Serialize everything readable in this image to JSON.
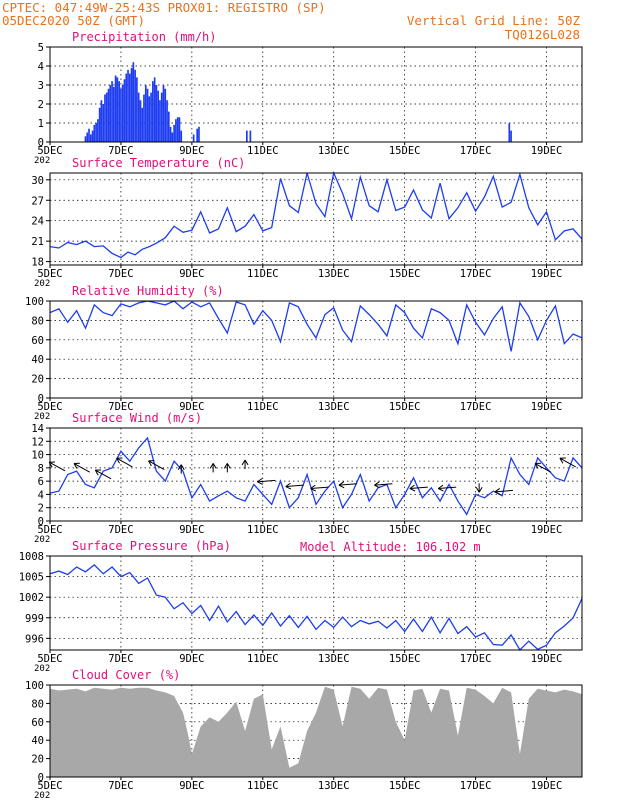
{
  "header": {
    "line1": "CPTEC:   047:49W-25:43S   PROX01: REGISTRO (SP)",
    "line2_left": "05DEC2020 50Z (GMT)",
    "line2_right": "Vertical Grid Line: 50Z",
    "line3_right": "TQ0126L028"
  },
  "x_axis": {
    "tick_labels": [
      "5DEC",
      "7DEC",
      "9DEC",
      "11DEC",
      "13DEC",
      "15DEC",
      "17DEC",
      "19DEC"
    ],
    "tick_days": [
      0,
      2,
      4,
      6,
      8,
      10,
      12,
      14
    ],
    "year_fragment": "202",
    "range_days": [
      0,
      15
    ]
  },
  "model_altitude": "Model Altitude: 106.102 m",
  "colors": {
    "header": "#e8731c",
    "title": "#e0107a",
    "line": "#1f3df0",
    "bar": "#1f3df0",
    "cloud": "#a8a8a8"
  },
  "chart_data": [
    {
      "type": "bar",
      "title": "Precipitation (mm/h)",
      "ylim": [
        0,
        5
      ],
      "yticks": [
        0,
        1,
        2,
        3,
        4,
        5
      ],
      "x_unit": "days since 05DEC",
      "x": [
        1.0,
        1.05,
        1.1,
        1.15,
        1.2,
        1.25,
        1.3,
        1.35,
        1.4,
        1.45,
        1.5,
        1.55,
        1.6,
        1.65,
        1.7,
        1.75,
        1.8,
        1.85,
        1.9,
        1.95,
        2.0,
        2.05,
        2.1,
        2.15,
        2.2,
        2.25,
        2.3,
        2.35,
        2.4,
        2.45,
        2.5,
        2.55,
        2.6,
        2.65,
        2.7,
        2.75,
        2.8,
        2.85,
        2.9,
        2.95,
        3.0,
        3.05,
        3.1,
        3.15,
        3.2,
        3.25,
        3.3,
        3.35,
        3.4,
        3.45,
        3.5,
        3.55,
        3.6,
        3.65,
        3.7,
        4.05,
        4.15,
        4.2,
        5.55,
        5.65,
        12.95,
        13.0
      ],
      "values": [
        0.3,
        0.5,
        0.7,
        0.4,
        0.6,
        0.9,
        1.0,
        1.2,
        1.8,
        2.2,
        2.0,
        2.5,
        2.6,
        2.8,
        3.0,
        3.2,
        2.9,
        3.5,
        3.4,
        3.2,
        2.8,
        3.0,
        3.3,
        3.6,
        3.8,
        3.6,
        3.9,
        4.2,
        3.8,
        3.4,
        2.6,
        2.2,
        1.8,
        2.5,
        3.0,
        2.8,
        2.4,
        2.6,
        3.2,
        3.4,
        3.0,
        2.7,
        2.2,
        2.6,
        3.0,
        2.8,
        2.2,
        1.6,
        0.8,
        0.5,
        0.9,
        1.2,
        1.3,
        1.3,
        0.6,
        0.4,
        0.7,
        0.8,
        0.6,
        0.6,
        1.0,
        0.6
      ]
    },
    {
      "type": "line",
      "title": "Surface Temperature (nC)",
      "ylim": [
        17.5,
        31
      ],
      "yticks": [
        18,
        21,
        24,
        27,
        30
      ],
      "x_unit": "days since 05DEC",
      "x": [
        0,
        0.25,
        0.5,
        0.75,
        1,
        1.25,
        1.5,
        1.75,
        2,
        2.2,
        2.4,
        2.6,
        2.8,
        3,
        3.25,
        3.5,
        3.75,
        4,
        4.25,
        4.5,
        4.75,
        5,
        5.25,
        5.5,
        5.75,
        6,
        6.25,
        6.5,
        6.75,
        7,
        7.25,
        7.5,
        7.75,
        8,
        8.25,
        8.5,
        8.75,
        9,
        9.25,
        9.5,
        9.75,
        10,
        10.25,
        10.5,
        10.75,
        11,
        11.25,
        11.5,
        11.75,
        12,
        12.25,
        12.5,
        12.75,
        13,
        13.25,
        13.5,
        13.75,
        14,
        14.25,
        14.5,
        14.75,
        15
      ],
      "values": [
        20.2,
        20.0,
        20.8,
        20.5,
        21.0,
        20.2,
        20.3,
        19.2,
        18.6,
        19.4,
        19.0,
        19.8,
        20.2,
        20.7,
        21.5,
        23.2,
        22.3,
        22.6,
        25.3,
        22.2,
        22.8,
        25.9,
        22.4,
        23.2,
        24.9,
        22.5,
        23.0,
        30.2,
        26.2,
        25.2,
        31.0,
        26.5,
        24.6,
        31.0,
        28.0,
        24.3,
        30.4,
        26.2,
        25.3,
        30.0,
        25.5,
        26.0,
        28.5,
        25.6,
        24.4,
        29.5,
        24.3,
        25.9,
        28.1,
        25.4,
        27.5,
        30.5,
        26.0,
        26.7,
        30.8,
        25.9,
        23.4,
        25.3,
        21.2,
        22.5,
        22.8,
        21.3
      ]
    },
    {
      "type": "line",
      "title": "Relative Humidity (%)",
      "ylim": [
        0,
        100
      ],
      "yticks": [
        0,
        20,
        40,
        60,
        80,
        100
      ],
      "x_unit": "days since 05DEC",
      "x": [
        0,
        0.25,
        0.5,
        0.75,
        1,
        1.25,
        1.5,
        1.75,
        2,
        2.25,
        2.5,
        2.75,
        3,
        3.25,
        3.5,
        3.75,
        4,
        4.25,
        4.5,
        4.75,
        5,
        5.25,
        5.5,
        5.75,
        6,
        6.25,
        6.5,
        6.75,
        7,
        7.25,
        7.5,
        7.75,
        8,
        8.25,
        8.5,
        8.75,
        9,
        9.25,
        9.5,
        9.75,
        10,
        10.25,
        10.5,
        10.75,
        11,
        11.25,
        11.5,
        11.75,
        12,
        12.25,
        12.5,
        12.75,
        13,
        13.25,
        13.5,
        13.75,
        14,
        14.25,
        14.5,
        14.75,
        15
      ],
      "values": [
        88,
        92,
        78,
        90,
        72,
        96,
        88,
        85,
        97,
        94,
        98,
        100,
        98,
        96,
        100,
        92,
        99,
        94,
        98,
        82,
        67,
        99,
        96,
        76,
        90,
        80,
        58,
        98,
        94,
        76,
        62,
        86,
        93,
        70,
        58,
        95,
        86,
        76,
        64,
        96,
        88,
        72,
        62,
        92,
        88,
        80,
        56,
        96,
        78,
        65,
        82,
        94,
        48,
        98,
        84,
        60,
        80,
        95,
        56,
        66,
        62
      ]
    },
    {
      "type": "line",
      "title": "Surface Wind (m/s)",
      "ylim": [
        0,
        14
      ],
      "yticks": [
        0,
        2,
        4,
        6,
        8,
        10,
        12,
        14
      ],
      "x_unit": "days since 05DEC",
      "x": [
        0,
        0.25,
        0.5,
        0.75,
        1,
        1.25,
        1.5,
        1.75,
        2,
        2.25,
        2.5,
        2.75,
        3,
        3.25,
        3.5,
        3.75,
        4,
        4.25,
        4.5,
        4.75,
        5,
        5.25,
        5.5,
        5.75,
        6,
        6.25,
        6.5,
        6.75,
        7,
        7.25,
        7.5,
        7.75,
        8,
        8.25,
        8.5,
        8.75,
        9,
        9.25,
        9.5,
        9.75,
        10,
        10.25,
        10.5,
        10.75,
        11,
        11.25,
        11.5,
        11.75,
        12,
        12.25,
        12.5,
        12.75,
        13,
        13.25,
        13.5,
        13.75,
        14,
        14.25,
        14.5,
        14.75,
        15
      ],
      "values": [
        4.2,
        4.5,
        7.0,
        7.5,
        5.5,
        5.0,
        7.5,
        8.0,
        10.5,
        9.0,
        11.0,
        12.5,
        7.5,
        6.0,
        9.0,
        7.5,
        3.5,
        5.5,
        3.0,
        3.8,
        4.5,
        3.5,
        3.0,
        5.5,
        4.0,
        2.5,
        6.0,
        2.0,
        3.5,
        7.0,
        2.5,
        4.5,
        6.0,
        2.0,
        4.0,
        7.0,
        3.0,
        5.0,
        5.5,
        2.0,
        4.0,
        6.5,
        3.5,
        5.0,
        3.0,
        5.5,
        3.0,
        1.0,
        4.0,
        3.5,
        4.5,
        3.8,
        9.5,
        7.0,
        5.5,
        9.5,
        8.0,
        6.5,
        6.0,
        9.5,
        8.0
      ],
      "arrows": [
        {
          "x": 0.2,
          "y": 8.2,
          "dir": "NW"
        },
        {
          "x": 0.9,
          "y": 8.0,
          "dir": "NW"
        },
        {
          "x": 1.5,
          "y": 7.0,
          "dir": "NW"
        },
        {
          "x": 2.1,
          "y": 8.8,
          "dir": "NW"
        },
        {
          "x": 3.0,
          "y": 8.4,
          "dir": "NW"
        },
        {
          "x": 3.7,
          "y": 7.8,
          "dir": "N"
        },
        {
          "x": 4.6,
          "y": 8.0,
          "dir": "N"
        },
        {
          "x": 5.0,
          "y": 8.0,
          "dir": "N"
        },
        {
          "x": 5.5,
          "y": 8.5,
          "dir": "N"
        },
        {
          "x": 6.1,
          "y": 6.0,
          "dir": "W"
        },
        {
          "x": 6.9,
          "y": 5.3,
          "dir": "W"
        },
        {
          "x": 7.6,
          "y": 5.0,
          "dir": "W"
        },
        {
          "x": 8.4,
          "y": 5.5,
          "dir": "W"
        },
        {
          "x": 9.4,
          "y": 5.5,
          "dir": "W"
        },
        {
          "x": 10.4,
          "y": 5.0,
          "dir": "W"
        },
        {
          "x": 11.2,
          "y": 5.0,
          "dir": "W"
        },
        {
          "x": 12.1,
          "y": 5.0,
          "dir": "S"
        },
        {
          "x": 12.8,
          "y": 4.5,
          "dir": "W"
        },
        {
          "x": 13.9,
          "y": 8.0,
          "dir": "NW"
        },
        {
          "x": 14.6,
          "y": 8.8,
          "dir": "NW"
        }
      ]
    },
    {
      "type": "line",
      "title": "Surface Pressure (hPa)",
      "ylim": [
        994.3,
        1008
      ],
      "yticks": [
        996,
        999,
        1002,
        1005,
        1008
      ],
      "x_unit": "days since 05DEC",
      "x": [
        0,
        0.25,
        0.5,
        0.75,
        1,
        1.25,
        1.5,
        1.75,
        2,
        2.25,
        2.5,
        2.75,
        3,
        3.25,
        3.5,
        3.75,
        4,
        4.25,
        4.5,
        4.75,
        5,
        5.25,
        5.5,
        5.75,
        6,
        6.25,
        6.5,
        6.75,
        7,
        7.25,
        7.5,
        7.75,
        8,
        8.25,
        8.5,
        8.75,
        9,
        9.25,
        9.5,
        9.75,
        10,
        10.25,
        10.5,
        10.75,
        11,
        11.25,
        11.5,
        11.75,
        12,
        12.25,
        12.5,
        12.75,
        13,
        13.25,
        13.5,
        13.75,
        14,
        14.25,
        14.5,
        14.75,
        15
      ],
      "values": [
        1005.4,
        1005.8,
        1005.3,
        1006.4,
        1005.7,
        1006.7,
        1005.4,
        1006.4,
        1005.0,
        1005.6,
        1004.0,
        1004.8,
        1002.3,
        1002.0,
        1000.3,
        1001.2,
        999.6,
        1000.8,
        998.6,
        1000.7,
        998.4,
        999.9,
        998.0,
        999.4,
        997.9,
        999.7,
        997.8,
        999.3,
        997.6,
        999.2,
        997.3,
        998.6,
        997.6,
        999.1,
        997.7,
        998.6,
        998.1,
        998.5,
        997.5,
        998.6,
        997.0,
        998.8,
        997.0,
        999.1,
        996.8,
        998.9,
        996.7,
        997.7,
        996.2,
        996.8,
        995.1,
        995.0,
        996.5,
        994.3,
        995.6,
        994.4,
        995.0,
        996.8,
        997.8,
        999.0,
        1001.8
      ]
    },
    {
      "type": "area",
      "title": "Cloud Cover (%)",
      "ylim": [
        0,
        100
      ],
      "yticks": [
        0,
        20,
        40,
        60,
        80,
        100
      ],
      "x_unit": "days since 05DEC",
      "x": [
        0,
        0.25,
        0.5,
        0.75,
        1,
        1.25,
        1.5,
        1.75,
        2,
        2.25,
        2.5,
        2.75,
        3,
        3.25,
        3.5,
        3.75,
        3.9,
        4,
        4.25,
        4.5,
        4.75,
        5,
        5.25,
        5.5,
        5.75,
        6,
        6.25,
        6.5,
        6.75,
        7,
        7.25,
        7.5,
        7.75,
        8,
        8.25,
        8.5,
        8.75,
        9,
        9.25,
        9.5,
        9.75,
        10,
        10.25,
        10.5,
        10.75,
        11,
        11.25,
        11.5,
        11.75,
        12,
        12.25,
        12.5,
        12.75,
        13,
        13.25,
        13.5,
        13.75,
        14,
        14.25,
        14.5,
        14.75,
        15
      ],
      "values": [
        96,
        94,
        95,
        96,
        93,
        97,
        96,
        95,
        97,
        96,
        97,
        97,
        94,
        92,
        88,
        70,
        45,
        25,
        55,
        65,
        60,
        70,
        82,
        50,
        85,
        90,
        30,
        55,
        10,
        15,
        50,
        70,
        98,
        95,
        55,
        98,
        96,
        85,
        97,
        95,
        60,
        40,
        94,
        96,
        70,
        96,
        94,
        45,
        97,
        95,
        88,
        80,
        97,
        92,
        25,
        85,
        96,
        94,
        92,
        95,
        93,
        90
      ]
    }
  ]
}
